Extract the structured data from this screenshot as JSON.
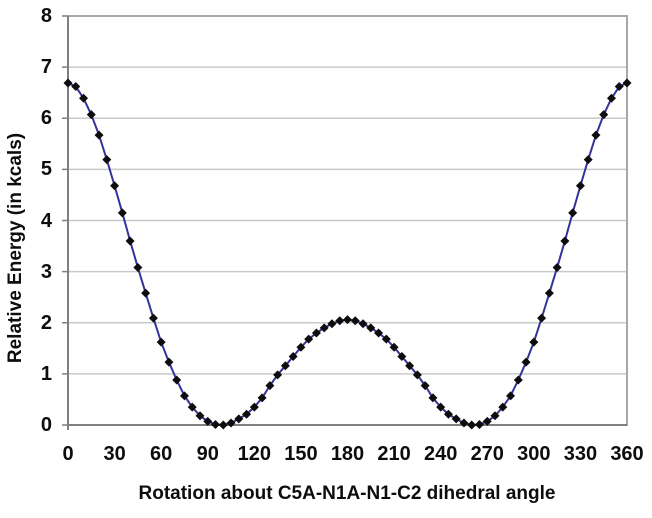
{
  "chart_data": {
    "type": "line",
    "title": "",
    "xlabel": "Rotation about C5A-N1A-N1-C2 dihedral angle",
    "ylabel": "Relative Energy (in kcals)",
    "xlim": [
      0,
      360
    ],
    "ylim": [
      0,
      8
    ],
    "xticks": [
      0,
      30,
      60,
      90,
      120,
      150,
      180,
      210,
      240,
      270,
      300,
      330,
      360
    ],
    "yticks": [
      0,
      1,
      2,
      3,
      4,
      5,
      6,
      7,
      8
    ],
    "grid": "horizontal-only",
    "legend": "none",
    "line_color": "#333399",
    "marker": "diamond",
    "marker_color": "#0d0d0d",
    "gridline_color": "#c9c9c9",
    "frame_color": "#a8a8a8",
    "axis_color": "#7f7f7f",
    "x": [
      0,
      5,
      10,
      15,
      20,
      25,
      30,
      35,
      40,
      45,
      50,
      55,
      60,
      65,
      70,
      75,
      80,
      85,
      90,
      95,
      100,
      105,
      110,
      115,
      120,
      125,
      130,
      135,
      140,
      145,
      150,
      155,
      160,
      165,
      170,
      175,
      180,
      185,
      190,
      195,
      200,
      205,
      210,
      215,
      220,
      225,
      230,
      235,
      240,
      245,
      250,
      255,
      260,
      265,
      270,
      275,
      280,
      285,
      290,
      295,
      300,
      305,
      310,
      315,
      320,
      325,
      330,
      335,
      340,
      345,
      350,
      355,
      360
    ],
    "y": [
      6.69,
      6.62,
      6.39,
      6.07,
      5.67,
      5.19,
      4.68,
      4.15,
      3.6,
      3.08,
      2.58,
      2.09,
      1.62,
      1.23,
      0.88,
      0.57,
      0.35,
      0.18,
      0.07,
      0.01,
      0.0,
      0.04,
      0.12,
      0.21,
      0.35,
      0.53,
      0.77,
      0.98,
      1.16,
      1.34,
      1.52,
      1.68,
      1.8,
      1.9,
      1.98,
      2.04,
      2.06,
      2.04,
      1.98,
      1.9,
      1.8,
      1.68,
      1.52,
      1.34,
      1.16,
      0.98,
      0.77,
      0.53,
      0.35,
      0.21,
      0.12,
      0.04,
      0.0,
      0.01,
      0.07,
      0.18,
      0.35,
      0.57,
      0.88,
      1.23,
      1.62,
      2.09,
      2.58,
      3.08,
      3.6,
      4.15,
      4.68,
      5.19,
      5.67,
      6.07,
      6.39,
      6.62,
      6.69
    ]
  }
}
